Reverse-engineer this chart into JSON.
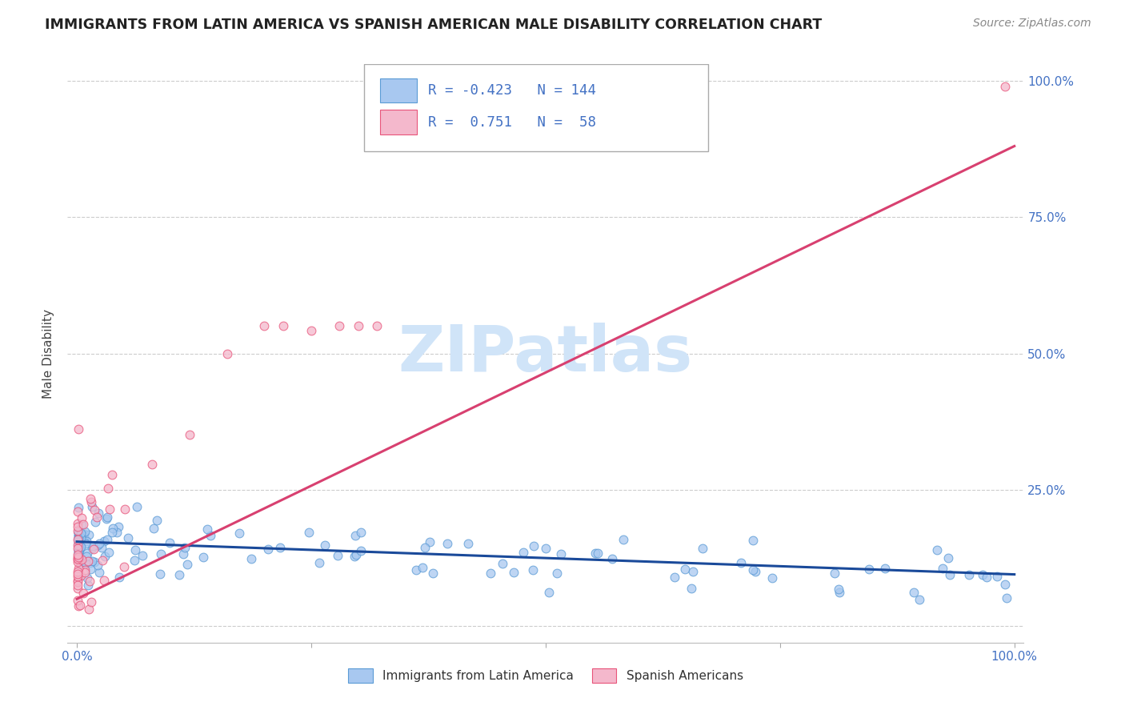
{
  "title": "IMMIGRANTS FROM LATIN AMERICA VS SPANISH AMERICAN MALE DISABILITY CORRELATION CHART",
  "source": "Source: ZipAtlas.com",
  "ylabel": "Male Disability",
  "blue_color": "#A8C8F0",
  "blue_edge_color": "#5B9BD5",
  "pink_color": "#F4B8CC",
  "pink_edge_color": "#E8547A",
  "blue_line_color": "#1A4A9A",
  "pink_line_color": "#D84070",
  "watermark_color": "#D0E4F8",
  "axis_color": "#4472C4",
  "grid_color": "#CCCCCC",
  "title_color": "#222222",
  "source_color": "#888888",
  "blue_line_x0": 0.0,
  "blue_line_x1": 1.0,
  "blue_line_y0": 0.155,
  "blue_line_y1": 0.095,
  "pink_line_x0": 0.0,
  "pink_line_x1": 1.0,
  "pink_line_y0": 0.05,
  "pink_line_y1": 0.88,
  "xlim_min": -0.01,
  "xlim_max": 1.01,
  "ylim_min": -0.03,
  "ylim_max": 1.03,
  "y_ticks": [
    0.0,
    0.25,
    0.5,
    0.75,
    1.0
  ],
  "y_tick_labels_right": [
    "",
    "25.0%",
    "50.0%",
    "75.0%",
    "100.0%"
  ],
  "x_ticks": [
    0.0,
    0.25,
    0.5,
    0.75,
    1.0
  ],
  "x_tick_labels": [
    "0.0%",
    "",
    "",
    "",
    "100.0%"
  ],
  "legend_r1": "R = -0.423",
  "legend_n1": "N = 144",
  "legend_r2": "R =  0.751",
  "legend_n2": "N =  58",
  "bottom_legend_labels": [
    "Immigrants from Latin America",
    "Spanish Americans"
  ],
  "watermark": "ZIPatlas"
}
